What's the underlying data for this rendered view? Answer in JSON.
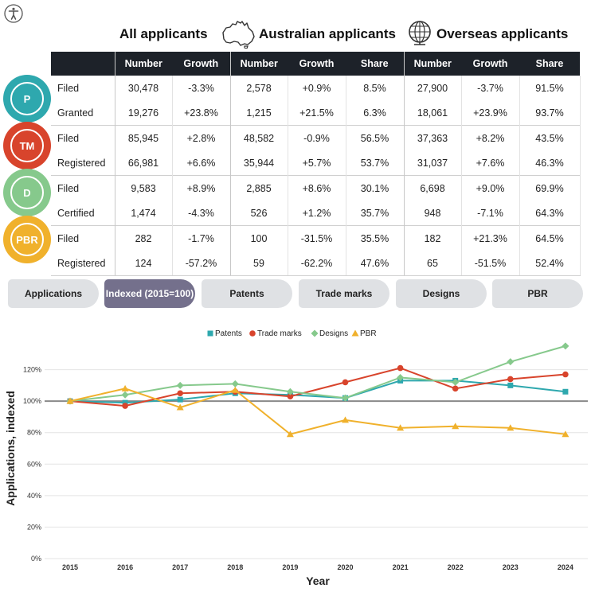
{
  "header": {
    "groups": [
      "All applicants",
      "Australian applicants",
      "Overseas applicants"
    ]
  },
  "table": {
    "columns": [
      "Number",
      "Growth",
      "Number",
      "Growth",
      "Share",
      "Number",
      "Growth",
      "Share"
    ],
    "rights": [
      {
        "badge": "P",
        "color": "#2ea8ae",
        "rows": [
          {
            "label": "Filed",
            "cells": [
              "30,478",
              "-3.3%",
              "2,578",
              "+0.9%",
              "8.5%",
              "27,900",
              "-3.7%",
              "91.5%"
            ]
          },
          {
            "label": "Granted",
            "cells": [
              "19,276",
              "+23.8%",
              "1,215",
              "+21.5%",
              "6.3%",
              "18,061",
              "+23.9%",
              "93.7%"
            ]
          }
        ]
      },
      {
        "badge": "TM",
        "color": "#d8442c",
        "rows": [
          {
            "label": "Filed",
            "cells": [
              "85,945",
              "+2.8%",
              "48,582",
              "-0.9%",
              "56.5%",
              "37,363",
              "+8.2%",
              "43.5%"
            ]
          },
          {
            "label": "Registered",
            "cells": [
              "66,981",
              "+6.6%",
              "35,944",
              "+5.7%",
              "53.7%",
              "31,037",
              "+7.6%",
              "46.3%"
            ]
          }
        ]
      },
      {
        "badge": "D",
        "color": "#86c98c",
        "rows": [
          {
            "label": "Filed",
            "cells": [
              "9,583",
              "+8.9%",
              "2,885",
              "+8.6%",
              "30.1%",
              "6,698",
              "+9.0%",
              "69.9%"
            ]
          },
          {
            "label": "Certified",
            "cells": [
              "1,474",
              "-4.3%",
              "526",
              "+1.2%",
              "35.7%",
              "948",
              "-7.1%",
              "64.3%"
            ]
          }
        ]
      },
      {
        "badge": "PBR",
        "color": "#f0b12c",
        "rows": [
          {
            "label": "Filed",
            "cells": [
              "282",
              "-1.7%",
              "100",
              "-31.5%",
              "35.5%",
              "182",
              "+21.3%",
              "64.5%"
            ]
          },
          {
            "label": "Registered",
            "cells": [
              "124",
              "-57.2%",
              "59",
              "-62.2%",
              "47.6%",
              "65",
              "-51.5%",
              "52.4%"
            ]
          }
        ]
      }
    ]
  },
  "tabs": [
    {
      "label": "Applications",
      "active": false
    },
    {
      "label": "Indexed (2015=100)",
      "active": true
    },
    {
      "label": "Patents",
      "active": false
    },
    {
      "label": "Trade marks",
      "active": false
    },
    {
      "label": "Designs",
      "active": false
    },
    {
      "label": "PBR",
      "active": false
    }
  ],
  "chart_data": {
    "type": "line",
    "xlabel": "Year",
    "ylabel": "Applications, indexed",
    "x": [
      2015,
      2016,
      2017,
      2018,
      2019,
      2020,
      2021,
      2022,
      2023,
      2024
    ],
    "ylim": [
      0,
      140
    ],
    "yticks": [
      0,
      20,
      40,
      60,
      80,
      100,
      120
    ],
    "ytick_labels": [
      "0%",
      "20%",
      "40%",
      "60%",
      "80%",
      "100%",
      "120%"
    ],
    "reference_line": 100,
    "grid": "horizontal",
    "legend_position": "top",
    "series": [
      {
        "name": "Patents",
        "color": "#2ea8ae",
        "marker": "square",
        "values": [
          100,
          99,
          101,
          105,
          104,
          102,
          113,
          113,
          110,
          106
        ]
      },
      {
        "name": "Trade marks",
        "color": "#d8442c",
        "marker": "circle",
        "values": [
          100,
          97,
          105,
          106,
          103,
          112,
          121,
          108,
          114,
          117
        ]
      },
      {
        "name": "Designs",
        "color": "#86c98c",
        "marker": "diamond",
        "values": [
          100,
          104,
          110,
          111,
          106,
          102,
          115,
          112,
          125,
          135
        ]
      },
      {
        "name": "PBR",
        "color": "#f0b12c",
        "marker": "triangle",
        "values": [
          100,
          108,
          96,
          107,
          79,
          88,
          83,
          84,
          83,
          79
        ]
      }
    ]
  }
}
